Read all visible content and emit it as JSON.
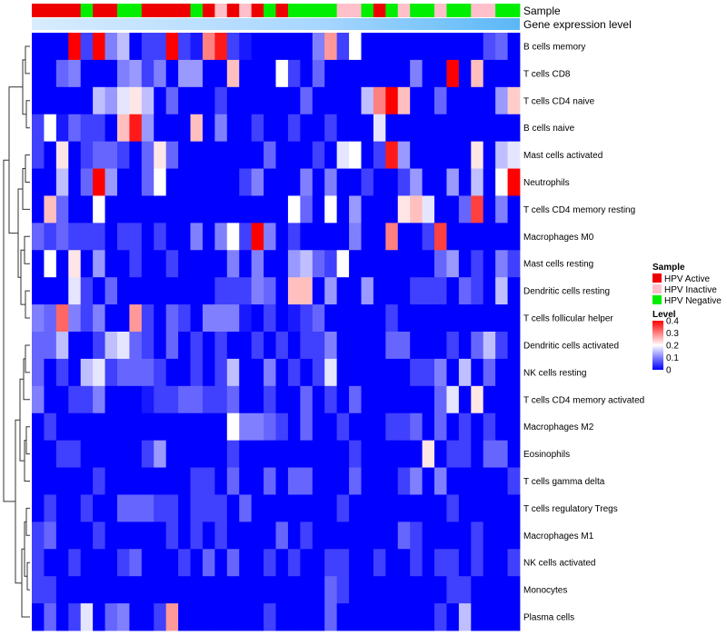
{
  "chart_data": {
    "type": "heatmap",
    "title": "",
    "annotation_tracks": [
      "Sample",
      "Gene expression level"
    ],
    "sample_groups": [
      "HPV Active",
      "HPV Inactive",
      "HPV Negative"
    ],
    "sample_group_colors": [
      "#ee0000",
      "#ffc0cb",
      "#00ee00"
    ],
    "sample_annotation": [
      0,
      0,
      0,
      0,
      2,
      0,
      0,
      2,
      2,
      0,
      0,
      0,
      0,
      2,
      0,
      1,
      0,
      1,
      0,
      2,
      0,
      2,
      2,
      2,
      2,
      1,
      1,
      2,
      0,
      2,
      1,
      2,
      2,
      1,
      2,
      2,
      1,
      1,
      2,
      2
    ],
    "gene_expression_gradient": [
      "#d8ecff",
      "#a6d6ff",
      "#5ab8f6"
    ],
    "rows": [
      "B cells memory",
      "T cells CD8",
      "T cells CD4 naive",
      "B cells naive",
      "Mast cells activated",
      "Neutrophils",
      "T cells CD4 memory resting",
      "Macrophages M0",
      "Mast cells resting",
      "Dendritic cells resting",
      "T cells follicular helper",
      "Dendritic cells activated",
      "NK cells resting",
      "T cells CD4 memory activated",
      "Macrophages M2",
      "Eosinophils",
      "T cells gamma delta",
      "T cells regulatory  Tregs",
      "Macrophages M1",
      "NK cells activated",
      "Monocytes",
      "Plasma cells"
    ],
    "n_columns": 40,
    "value_range": [
      0,
      0.4
    ],
    "color_scale": {
      "colors": [
        "#0000ff",
        "#ffffff",
        "#ff0000"
      ],
      "breaks": [
        0,
        0.2,
        0.4
      ]
    },
    "values": [
      [
        0,
        0,
        0,
        0.4,
        0.05,
        0.4,
        0.1,
        0.15,
        0,
        0.05,
        0.05,
        0.4,
        0.05,
        0.02,
        0.3,
        0.38,
        0.05,
        0.02,
        0,
        0,
        0,
        0,
        0,
        0.1,
        0.28,
        0.05,
        0.2,
        0,
        0,
        0,
        0,
        0,
        0,
        0,
        0,
        0,
        0,
        0.06,
        0.08,
        0
      ],
      [
        0,
        0,
        0.08,
        0.1,
        0,
        0,
        0,
        0.1,
        0.12,
        0.05,
        0.1,
        0,
        0.12,
        0.12,
        0,
        0,
        0.25,
        0,
        0,
        0,
        0.2,
        0.05,
        0,
        0.08,
        0,
        0,
        0,
        0,
        0,
        0,
        0,
        0.1,
        0,
        0,
        0.4,
        0,
        0.25,
        0,
        0,
        0
      ],
      [
        0,
        0,
        0,
        0,
        0,
        0.15,
        0.12,
        0.18,
        0.22,
        0.15,
        0,
        0.08,
        0,
        0,
        0,
        0.05,
        0,
        0,
        0,
        0,
        0,
        0,
        0.08,
        0,
        0,
        0,
        0,
        0.15,
        0.3,
        0.4,
        0.25,
        0,
        0,
        0.08,
        0,
        0,
        0,
        0,
        0.12,
        0.24
      ],
      [
        0.05,
        0.2,
        0.02,
        0.08,
        0.05,
        0.05,
        0,
        0.25,
        0.38,
        0.12,
        0,
        0,
        0,
        0.25,
        0,
        0.1,
        0,
        0,
        0.05,
        0,
        0,
        0.05,
        0,
        0,
        0.05,
        0,
        0,
        0,
        0.18,
        0,
        0,
        0,
        0,
        0,
        0,
        0,
        0,
        0,
        0,
        0
      ],
      [
        0.05,
        0,
        0.22,
        0,
        0.05,
        0.08,
        0.08,
        0.05,
        0,
        0.08,
        0.22,
        0.08,
        0,
        0,
        0,
        0,
        0,
        0,
        0,
        0.08,
        0,
        0,
        0,
        0.05,
        0,
        0.18,
        0.2,
        0,
        0.05,
        0.38,
        0.12,
        0,
        0,
        0,
        0,
        0,
        0.22,
        0,
        0.15,
        0.18
      ],
      [
        0,
        0,
        0.15,
        0,
        0.08,
        0.4,
        0.12,
        0,
        0,
        0.08,
        0.2,
        0,
        0,
        0,
        0,
        0,
        0,
        0.05,
        0.1,
        0,
        0,
        0,
        0.1,
        0,
        0.1,
        0,
        0,
        0.05,
        0,
        0,
        0.05,
        0.12,
        0,
        0,
        0.12,
        0,
        0.15,
        0,
        0.2,
        0.4
      ],
      [
        0,
        0.25,
        0.08,
        0,
        0,
        0.2,
        0,
        0,
        0,
        0,
        0,
        0,
        0,
        0,
        0,
        0,
        0,
        0,
        0,
        0,
        0,
        0.2,
        0.08,
        0,
        0.2,
        0,
        0.12,
        0,
        0,
        0,
        0.22,
        0.25,
        0.18,
        0,
        0,
        0.08,
        0.35,
        0,
        0.1,
        0
      ],
      [
        0.08,
        0.05,
        0.08,
        0.05,
        0.05,
        0.05,
        0,
        0.05,
        0.05,
        0,
        0.05,
        0,
        0,
        0.1,
        0,
        0.1,
        0.2,
        0.05,
        0.4,
        0.1,
        0,
        0.05,
        0,
        0,
        0,
        0,
        0.1,
        0,
        0,
        0.3,
        0,
        0,
        0.05,
        0.35,
        0,
        0,
        0,
        0,
        0,
        0
      ],
      [
        0,
        0.2,
        0,
        0.22,
        0,
        0.12,
        0,
        0,
        0.05,
        0,
        0,
        0.05,
        0,
        0,
        0,
        0,
        0.1,
        0,
        0.1,
        0,
        0,
        0.12,
        0.15,
        0.08,
        0.05,
        0.2,
        0,
        0,
        0,
        0,
        0,
        0,
        0,
        0.08,
        0.12,
        0,
        0.05,
        0,
        0.1,
        0.05
      ],
      [
        0,
        0,
        0,
        0.18,
        0.05,
        0,
        0.08,
        0,
        0,
        0,
        0,
        0,
        0,
        0,
        0,
        0.05,
        0.05,
        0.05,
        0.1,
        0.08,
        0,
        0.25,
        0.25,
        0,
        0.12,
        0,
        0,
        0.12,
        0,
        0,
        0,
        0.05,
        0.05,
        0.05,
        0,
        0.08,
        0.05,
        0,
        0.15,
        0
      ],
      [
        0.1,
        0.08,
        0.32,
        0.1,
        0.05,
        0.1,
        0,
        0,
        0.28,
        0.05,
        0,
        0.08,
        0.05,
        0,
        0.1,
        0.1,
        0.1,
        0.02,
        0,
        0.05,
        0,
        0.02,
        0.05,
        0.08,
        0,
        0,
        0,
        0,
        0,
        0.05,
        0,
        0,
        0,
        0,
        0,
        0,
        0,
        0,
        0,
        0
      ],
      [
        0.08,
        0.08,
        0.15,
        0,
        0,
        0.05,
        0.15,
        0.18,
        0.08,
        0.05,
        0,
        0.08,
        0,
        0.05,
        0,
        0.05,
        0,
        0,
        0.05,
        0,
        0.05,
        0,
        0.05,
        0.05,
        0.1,
        0,
        0,
        0,
        0,
        0.08,
        0.08,
        0,
        0,
        0,
        0.05,
        0,
        0.08,
        0.15,
        0.05,
        0
      ],
      [
        0.08,
        0,
        0.05,
        0,
        0.15,
        0.18,
        0.05,
        0.08,
        0.08,
        0.08,
        0.05,
        0,
        0,
        0.05,
        0,
        0.05,
        0.15,
        0,
        0,
        0.1,
        0,
        0.05,
        0,
        0.05,
        0.18,
        0,
        0,
        0,
        0,
        0,
        0,
        0.05,
        0.05,
        0.1,
        0,
        0.15,
        0,
        0.08,
        0,
        0
      ],
      [
        0.1,
        0,
        0,
        0.05,
        0.05,
        0.1,
        0,
        0,
        0,
        0.02,
        0.05,
        0.05,
        0.08,
        0.08,
        0.05,
        0.05,
        0.08,
        0,
        0,
        0.05,
        0,
        0,
        0.08,
        0,
        0.05,
        0,
        0.08,
        0,
        0,
        0,
        0,
        0,
        0,
        0.08,
        0.18,
        0,
        0.22,
        0,
        0,
        0
      ],
      [
        0,
        0.05,
        0,
        0,
        0,
        0,
        0,
        0,
        0,
        0,
        0,
        0,
        0,
        0,
        0,
        0,
        0.2,
        0.1,
        0.1,
        0.08,
        0.05,
        0,
        0.08,
        0,
        0,
        0.05,
        0,
        0,
        0,
        0.05,
        0.05,
        0.08,
        0,
        0.08,
        0,
        0.05,
        0,
        0.05,
        0,
        0
      ],
      [
        0,
        0,
        0.05,
        0.05,
        0,
        0,
        0,
        0,
        0,
        0.05,
        0.12,
        0,
        0,
        0,
        0,
        0,
        0.05,
        0,
        0,
        0,
        0,
        0,
        0,
        0,
        0,
        0,
        0.05,
        0,
        0,
        0,
        0,
        0,
        0.22,
        0,
        0.05,
        0.05,
        0,
        0.08,
        0.08,
        0
      ],
      [
        0,
        0,
        0,
        0,
        0,
        0.05,
        0,
        0,
        0,
        0,
        0,
        0,
        0,
        0.05,
        0.05,
        0,
        0.08,
        0,
        0,
        0.08,
        0,
        0.08,
        0.08,
        0,
        0,
        0,
        0.08,
        0,
        0,
        0,
        0.05,
        0.1,
        0,
        0.1,
        0,
        0,
        0,
        0,
        0,
        0.05
      ],
      [
        0,
        0.05,
        0,
        0,
        0.05,
        0,
        0,
        0.08,
        0.08,
        0.08,
        0.05,
        0.05,
        0,
        0.05,
        0.05,
        0.05,
        0,
        0.08,
        0,
        0,
        0,
        0,
        0,
        0,
        0,
        0.05,
        0,
        0,
        0,
        0,
        0,
        0,
        0,
        0,
        0.05,
        0,
        0,
        0,
        0,
        0
      ],
      [
        0.05,
        0.08,
        0,
        0,
        0,
        0.05,
        0,
        0,
        0,
        0,
        0,
        0.05,
        0,
        0.05,
        0,
        0.05,
        0,
        0,
        0,
        0,
        0.08,
        0,
        0.05,
        0,
        0,
        0,
        0,
        0,
        0,
        0,
        0.08,
        0.05,
        0,
        0,
        0,
        0,
        0.05,
        0,
        0,
        0
      ],
      [
        0.05,
        0,
        0,
        0.05,
        0,
        0,
        0,
        0.05,
        0.08,
        0,
        0,
        0,
        0.05,
        0,
        0.08,
        0,
        0.08,
        0,
        0,
        0.05,
        0,
        0.05,
        0,
        0,
        0.05,
        0.05,
        0,
        0,
        0.05,
        0,
        0,
        0.05,
        0,
        0.05,
        0.05,
        0,
        0.05,
        0,
        0,
        0.05
      ],
      [
        0.05,
        0.05,
        0,
        0,
        0,
        0,
        0,
        0,
        0,
        0,
        0,
        0,
        0,
        0,
        0,
        0,
        0,
        0,
        0,
        0,
        0,
        0,
        0,
        0,
        0.08,
        0.05,
        0,
        0,
        0,
        0,
        0,
        0,
        0,
        0,
        0.05,
        0.05,
        0,
        0,
        0,
        0
      ],
      [
        0,
        0.08,
        0,
        0.05,
        0.18,
        0,
        0.08,
        0.1,
        0,
        0,
        0.05,
        0.28,
        0,
        0,
        0,
        0,
        0,
        0,
        0,
        0.05,
        0,
        0,
        0,
        0,
        0.08,
        0,
        0,
        0,
        0,
        0,
        0,
        0,
        0,
        0.05,
        0,
        0.15,
        0,
        0,
        0,
        0
      ]
    ],
    "legend": {
      "sample_title": "Sample",
      "sample_entries": [
        "HPV Active",
        "HPV Inactive",
        "HPV Negative"
      ],
      "level_title": "Level",
      "level_ticks": [
        0.4,
        0.3,
        0.2,
        0.1,
        0
      ],
      "level_tick_labels": [
        "0.4",
        "0.3",
        "0.2",
        "0.1",
        "0"
      ],
      "placement": "right"
    }
  }
}
